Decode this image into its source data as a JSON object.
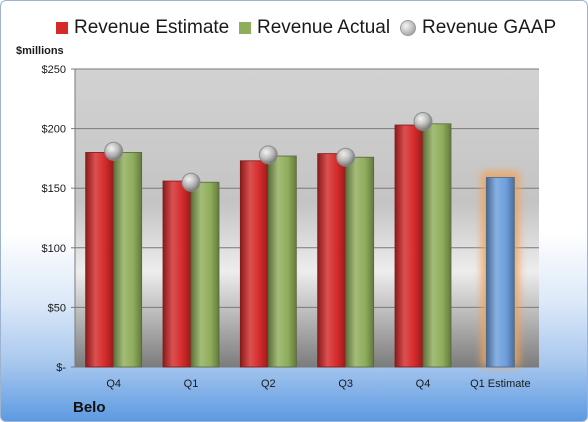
{
  "chart_data": {
    "type": "bar",
    "ylabel": "$millions",
    "categories": [
      "Q4",
      "Q1",
      "Q2",
      "Q3",
      "Q4",
      "Q1 Estimate"
    ],
    "series": [
      {
        "name": "Revenue Estimate",
        "values": [
          180,
          156,
          173,
          179,
          203,
          null
        ],
        "color": "#d42a2a"
      },
      {
        "name": "Revenue Actual",
        "values": [
          180,
          155,
          177,
          176,
          204,
          null
        ],
        "color": "#8fad5a"
      },
      {
        "name": "Revenue GAAP",
        "values": [
          181,
          155,
          178,
          176,
          206,
          null
        ],
        "color": "#b8b8b8"
      }
    ],
    "forecast": {
      "category": "Q1 Estimate",
      "value": 159,
      "color": "#6d9fdc",
      "glow_color": "#f0a35a"
    },
    "ylim": [
      0,
      250
    ],
    "yticks": [
      0,
      50,
      100,
      150,
      200,
      250
    ],
    "ytick_labels": [
      "$-",
      "$50",
      "$100",
      "$150",
      "$200",
      "$250"
    ],
    "grid": true,
    "legend_position": "top"
  },
  "company": "Belo"
}
